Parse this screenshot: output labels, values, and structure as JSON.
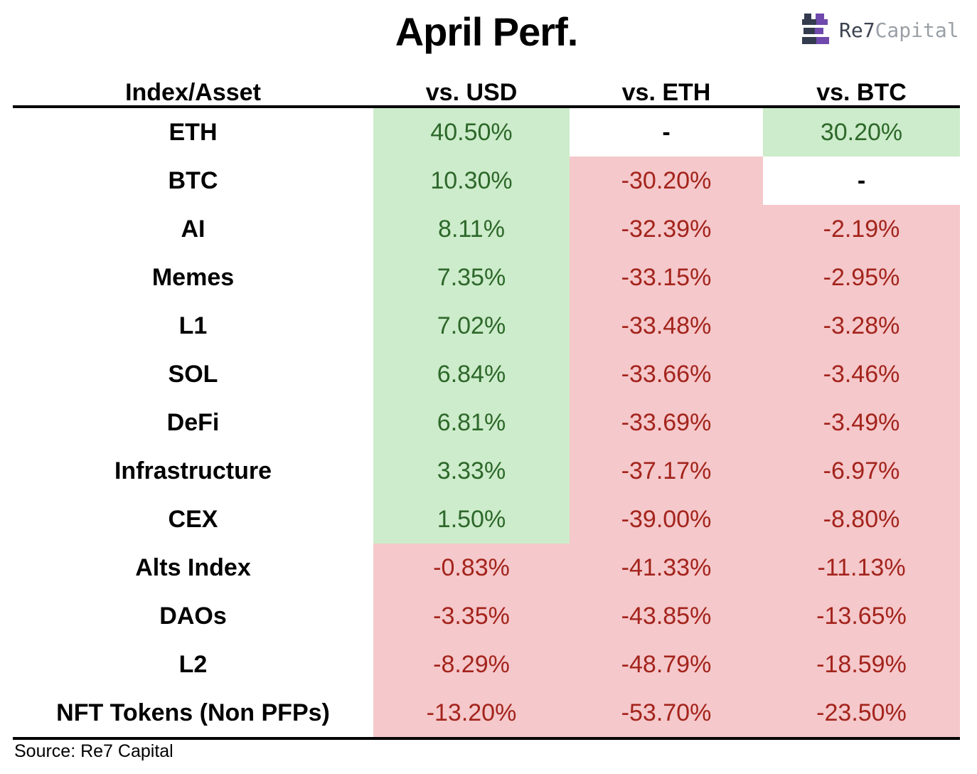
{
  "header": {
    "title": "April Perf."
  },
  "logo": {
    "name_primary": "Re7",
    "name_secondary": "Capital",
    "icon": "rook-castle-icon"
  },
  "table": {
    "columns": [
      "Index/Asset",
      "vs. USD",
      "vs. ETH",
      "vs. BTC"
    ]
  },
  "chart_data": {
    "type": "table",
    "title": "April Perf.",
    "columns": [
      "Index/Asset",
      "vs. USD",
      "vs. ETH",
      "vs. BTC"
    ],
    "rows": [
      [
        "ETH",
        "40.50%",
        "-",
        "30.20%"
      ],
      [
        "BTC",
        "10.30%",
        "-30.20%",
        "-"
      ],
      [
        "AI",
        "8.11%",
        "-32.39%",
        "-2.19%"
      ],
      [
        "Memes",
        "7.35%",
        "-33.15%",
        "-2.95%"
      ],
      [
        "L1",
        "7.02%",
        "-33.48%",
        "-3.28%"
      ],
      [
        "SOL",
        "6.84%",
        "-33.66%",
        "-3.46%"
      ],
      [
        "DeFi",
        "6.81%",
        "-33.69%",
        "-3.49%"
      ],
      [
        "Infrastructure",
        "3.33%",
        "-37.17%",
        "-6.97%"
      ],
      [
        "CEX",
        "1.50%",
        "-39.00%",
        "-8.80%"
      ],
      [
        "Alts Index",
        "-0.83%",
        "-41.33%",
        "-11.13%"
      ],
      [
        "DAOs",
        "-3.35%",
        "-43.85%",
        "-13.65%"
      ],
      [
        "L2",
        "-8.29%",
        "-48.79%",
        "-18.59%"
      ],
      [
        "NFT Tokens (Non PFPs)",
        "-13.20%",
        "-53.70%",
        "-23.50%"
      ]
    ],
    "source": "Source: Re7 Capital",
    "color_coding": "green cell = positive, red cell = negative, white dash = not applicable",
    "legend_position": "none",
    "grid": false
  },
  "footer": {
    "source": "Source: Re7 Capital"
  },
  "colors": {
    "positive_bg": "#cdeccb",
    "negative_bg": "#f5c8cb",
    "positive_text": "#2d682a",
    "negative_text": "#a3241c",
    "logo_dark": "#343b4e",
    "logo_purple": "#6f49ac",
    "logo_text_primary": "#3c4250",
    "logo_text_secondary": "#9aa0a6"
  }
}
